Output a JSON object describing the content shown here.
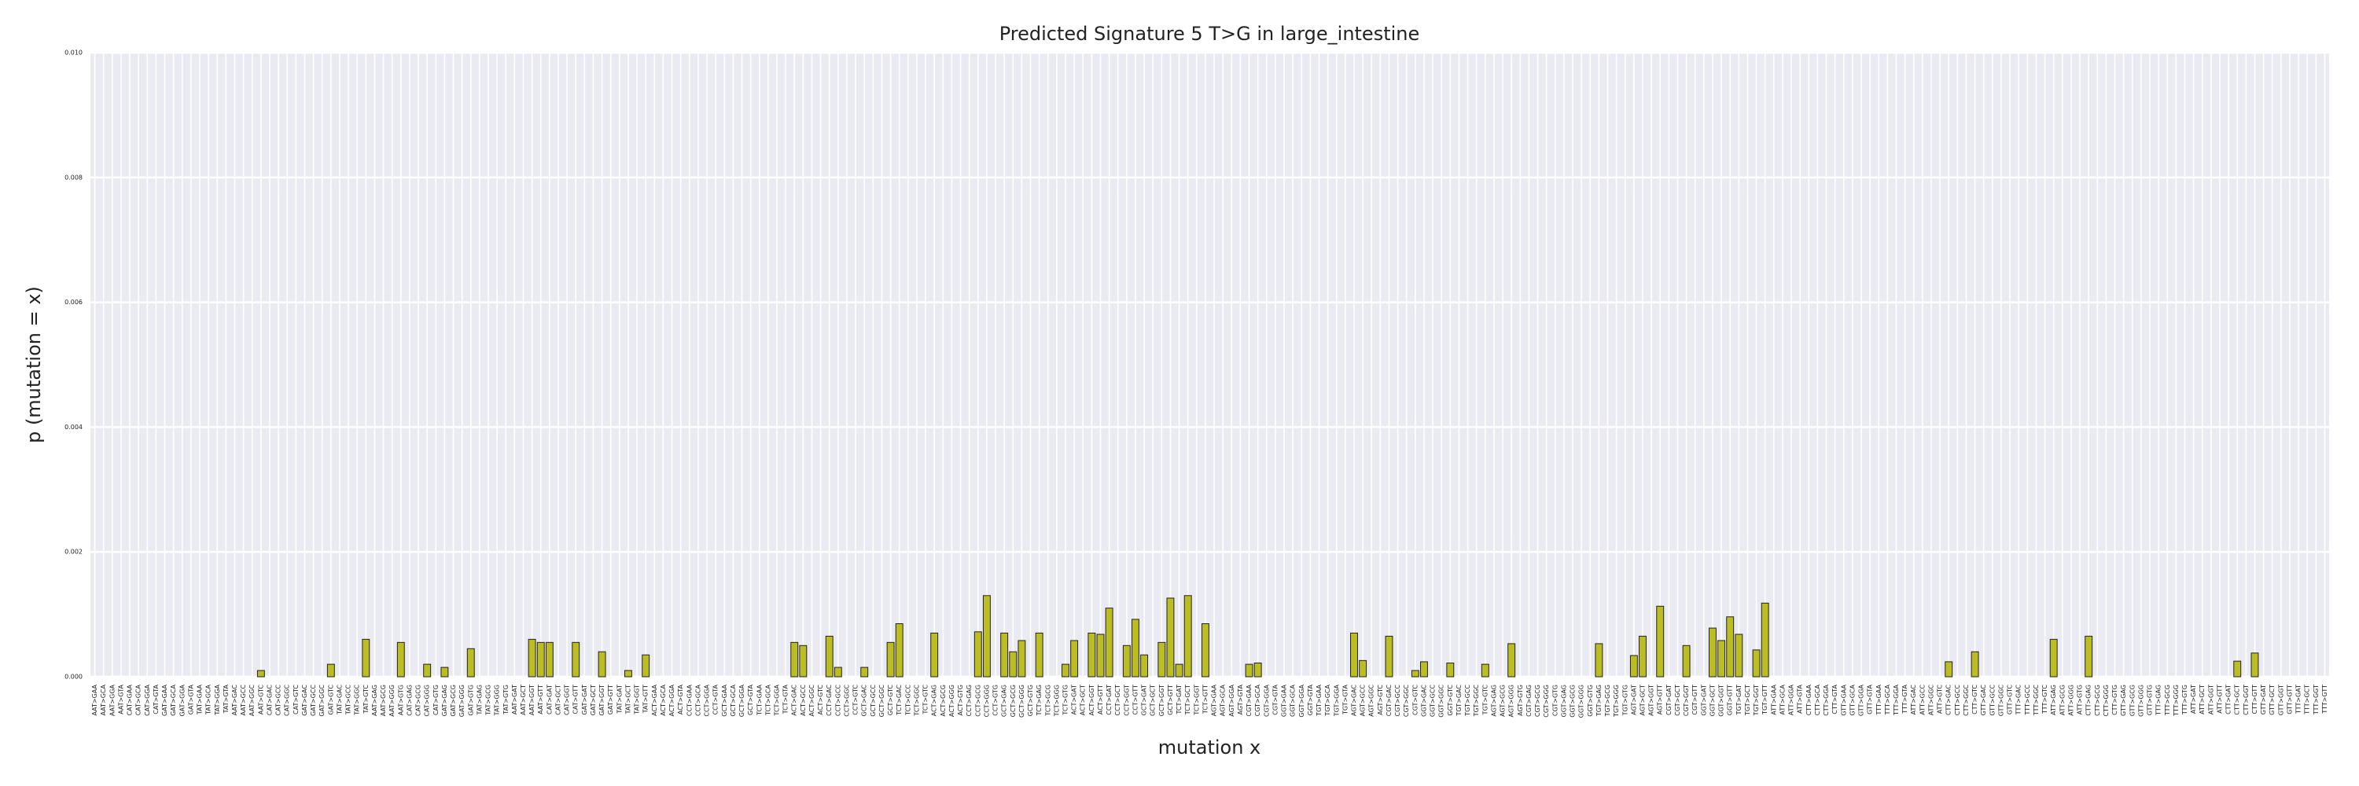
{
  "chart_data": {
    "type": "bar",
    "title": "Predicted Signature 5 T>G in large_intestine",
    "xlabel": "mutation x",
    "ylabel": "p (mutation = x)",
    "color": "#bcbd22",
    "edgecolor": "#222222",
    "grid": true,
    "ylim": [
      0,
      0.01
    ],
    "yticks": [
      {
        "value": 0,
        "label": "0.000"
      },
      {
        "value": 0.002,
        "label": "0.002"
      },
      {
        "value": 0.004,
        "label": "0.004"
      },
      {
        "value": 0.006,
        "label": "0.006"
      },
      {
        "value": 0.008,
        "label": "0.008"
      },
      {
        "value": 0.01,
        "label": "0.010"
      }
    ],
    "categories": [
      "AAT>GAA",
      "AAT>GCA",
      "AAT>GGA",
      "AAT>GTA",
      "CAT>GAA",
      "CAT>GCA",
      "CAT>GGA",
      "CAT>GTA",
      "GAT>GAA",
      "GAT>GCA",
      "GAT>GGA",
      "GAT>GTA",
      "TAT>GAA",
      "TAT>GCA",
      "TAT>GGA",
      "TAT>GTA",
      "AAT>GAC",
      "AAT>GCC",
      "AAT>GGC",
      "AAT>GTC",
      "CAT>GAC",
      "CAT>GCC",
      "CAT>GGC",
      "CAT>GTC",
      "GAT>GAC",
      "GAT>GCC",
      "GAT>GGC",
      "GAT>GTC",
      "TAT>GAC",
      "TAT>GCC",
      "TAT>GGC",
      "TAT>GTC",
      "AAT>GAG",
      "AAT>GCG",
      "AAT>GGG",
      "AAT>GTG",
      "CAT>GAG",
      "CAT>GCG",
      "CAT>GGG",
      "CAT>GTG",
      "GAT>GAG",
      "GAT>GCG",
      "GAT>GGG",
      "GAT>GTG",
      "TAT>GAG",
      "TAT>GCG",
      "TAT>GGG",
      "TAT>GTG",
      "AAT>GAT",
      "AAT>GCT",
      "AAT>GGT",
      "AAT>GTT",
      "CAT>GAT",
      "CAT>GCT",
      "CAT>GGT",
      "CAT>GTT",
      "GAT>GAT",
      "GAT>GCT",
      "GAT>GGT",
      "GAT>GTT",
      "TAT>GAT",
      "TAT>GCT",
      "TAT>GGT",
      "TAT>GTT",
      "ACT>GAA",
      "ACT>GCA",
      "ACT>GGA",
      "ACT>GTA",
      "CCT>GAA",
      "CCT>GCA",
      "CCT>GGA",
      "CCT>GTA",
      "GCT>GAA",
      "GCT>GCA",
      "GCT>GGA",
      "GCT>GTA",
      "TCT>GAA",
      "TCT>GCA",
      "TCT>GGA",
      "TCT>GTA",
      "ACT>GAC",
      "ACT>GCC",
      "ACT>GGC",
      "ACT>GTC",
      "CCT>GAC",
      "CCT>GCC",
      "CCT>GGC",
      "CCT>GTC",
      "GCT>GAC",
      "GCT>GCC",
      "GCT>GGC",
      "GCT>GTC",
      "TCT>GAC",
      "TCT>GCC",
      "TCT>GGC",
      "TCT>GTC",
      "ACT>GAG",
      "ACT>GCG",
      "ACT>GGG",
      "ACT>GTG",
      "CCT>GAG",
      "CCT>GCG",
      "CCT>GGG",
      "CCT>GTG",
      "GCT>GAG",
      "GCT>GCG",
      "GCT>GGG",
      "GCT>GTG",
      "TCT>GAG",
      "TCT>GCG",
      "TCT>GGG",
      "TCT>GTG",
      "ACT>GAT",
      "ACT>GCT",
      "ACT>GGT",
      "ACT>GTT",
      "CCT>GAT",
      "CCT>GCT",
      "CCT>GGT",
      "CCT>GTT",
      "GCT>GAT",
      "GCT>GCT",
      "GCT>GGT",
      "GCT>GTT",
      "TCT>GAT",
      "TCT>GCT",
      "TCT>GGT",
      "TCT>GTT",
      "AGT>GAA",
      "AGT>GCA",
      "AGT>GGA",
      "AGT>GTA",
      "CGT>GAA",
      "CGT>GCA",
      "CGT>GGA",
      "CGT>GTA",
      "GGT>GAA",
      "GGT>GCA",
      "GGT>GGA",
      "GGT>GTA",
      "TGT>GAA",
      "TGT>GCA",
      "TGT>GGA",
      "TGT>GTA",
      "AGT>GAC",
      "AGT>GCC",
      "AGT>GGC",
      "AGT>GTC",
      "CGT>GAC",
      "CGT>GCC",
      "CGT>GGC",
      "CGT>GTC",
      "GGT>GAC",
      "GGT>GCC",
      "GGT>GGC",
      "GGT>GTC",
      "TGT>GAC",
      "TGT>GCC",
      "TGT>GGC",
      "TGT>GTC",
      "AGT>GAG",
      "AGT>GCG",
      "AGT>GGG",
      "AGT>GTG",
      "CGT>GAG",
      "CGT>GCG",
      "CGT>GGG",
      "CGT>GTG",
      "GGT>GAG",
      "GGT>GCG",
      "GGT>GGG",
      "GGT>GTG",
      "TGT>GAG",
      "TGT>GCG",
      "TGT>GGG",
      "TGT>GTG",
      "AGT>GAT",
      "AGT>GCT",
      "AGT>GGT",
      "AGT>GTT",
      "CGT>GAT",
      "CGT>GCT",
      "CGT>GGT",
      "CGT>GTT",
      "GGT>GAT",
      "GGT>GCT",
      "GGT>GGT",
      "GGT>GTT",
      "TGT>GAT",
      "TGT>GCT",
      "TGT>GGT",
      "TGT>GTT",
      "ATT>GAA",
      "ATT>GCA",
      "ATT>GGA",
      "ATT>GTA",
      "CTT>GAA",
      "CTT>GCA",
      "CTT>GGA",
      "CTT>GTA",
      "GTT>GAA",
      "GTT>GCA",
      "GTT>GGA",
      "GTT>GTA",
      "TTT>GAA",
      "TTT>GCA",
      "TTT>GGA",
      "TTT>GTA",
      "ATT>GAC",
      "ATT>GCC",
      "ATT>GGC",
      "ATT>GTC",
      "CTT>GAC",
      "CTT>GCC",
      "CTT>GGC",
      "CTT>GTC",
      "GTT>GAC",
      "GTT>GCC",
      "GTT>GGC",
      "GTT>GTC",
      "TTT>GAC",
      "TTT>GCC",
      "TTT>GGC",
      "TTT>GTC",
      "ATT>GAG",
      "ATT>GCG",
      "ATT>GGG",
      "ATT>GTG",
      "CTT>GAG",
      "CTT>GCG",
      "CTT>GGG",
      "CTT>GTG",
      "GTT>GAG",
      "GTT>GCG",
      "GTT>GGG",
      "GTT>GTG",
      "TTT>GAG",
      "TTT>GCG",
      "TTT>GGG",
      "TTT>GTG",
      "ATT>GAT",
      "ATT>GCT",
      "ATT>GGT",
      "ATT>GTT",
      "CTT>GAT",
      "CTT>GCT",
      "CTT>GGT",
      "CTT>GTT",
      "GTT>GAT",
      "GTT>GCT",
      "GTT>GGT",
      "GTT>GTT",
      "TTT>GAT",
      "TTT>GCT",
      "TTT>GGT",
      "TTT>GTT"
    ],
    "values": [
      0,
      0,
      0,
      0,
      0,
      0,
      0,
      0,
      0,
      0,
      0,
      0,
      0,
      0,
      0,
      0,
      0,
      0,
      0,
      0.0001,
      0,
      0,
      0,
      0,
      0,
      0,
      0,
      0.0002,
      0,
      0,
      0,
      0.0006,
      0,
      0,
      0,
      0.00055,
      0,
      0,
      0.0002,
      0,
      0.00015,
      0,
      0,
      0.00045,
      0,
      0,
      0,
      0,
      0,
      0,
      0.0006,
      0.00055,
      0.00055,
      0,
      0,
      0.00055,
      0,
      0,
      0.0004,
      0,
      0,
      0.0001,
      0,
      0.00035,
      0,
      0,
      0,
      0,
      0,
      0,
      0,
      0,
      0,
      0,
      0,
      0,
      0,
      0,
      0,
      0,
      0.00055,
      0.0005,
      0,
      0,
      0.00065,
      0.00015,
      0,
      0,
      0.00015,
      0,
      0,
      0.00055,
      0.00085,
      0,
      0,
      0,
      0.0007,
      0,
      0,
      0,
      0,
      0.00072,
      0.0013,
      0,
      0.0007,
      0.0004,
      0.00058,
      0,
      0.0007,
      0,
      0,
      0.0002,
      0.00058,
      0,
      0.0007,
      0.00068,
      0.0011,
      0,
      0.0005,
      0.00092,
      0.00035,
      0,
      0.00055,
      0.00126,
      0.0002,
      0.0013,
      0,
      0.00085,
      0,
      0,
      0,
      0,
      0.0002,
      0.00022,
      0,
      0,
      0,
      0,
      0,
      0,
      0,
      0,
      0,
      0,
      0.0007,
      0.00026,
      0,
      0,
      0.00065,
      0,
      0,
      0.0001,
      0.00024,
      0,
      0,
      0.00022,
      0,
      0,
      0,
      0.0002,
      0,
      0,
      0.00053,
      0,
      0,
      0,
      0,
      0,
      0,
      0,
      0,
      0,
      0.00053,
      0,
      0,
      0,
      0.00034,
      0.00065,
      0,
      0.00113,
      0,
      0,
      0.0005,
      0,
      0,
      0.00078,
      0.00058,
      0.00096,
      0.00068,
      0,
      0.00043,
      0.00118,
      0,
      0,
      0,
      0,
      0,
      0,
      0,
      0,
      0,
      0,
      0,
      0,
      0,
      0,
      0,
      0,
      0,
      0,
      0,
      0,
      0.00024,
      0,
      0,
      0.0004,
      0,
      0,
      0,
      0,
      0,
      0,
      0,
      0,
      0.0006,
      0,
      0,
      0,
      0.00065,
      0,
      0,
      0,
      0,
      0,
      0,
      0,
      0,
      0,
      0,
      0,
      0,
      0,
      0,
      0,
      0,
      0.00025,
      0,
      0.00038,
      0,
      0,
      0,
      0,
      0,
      0,
      0,
      0
    ]
  }
}
